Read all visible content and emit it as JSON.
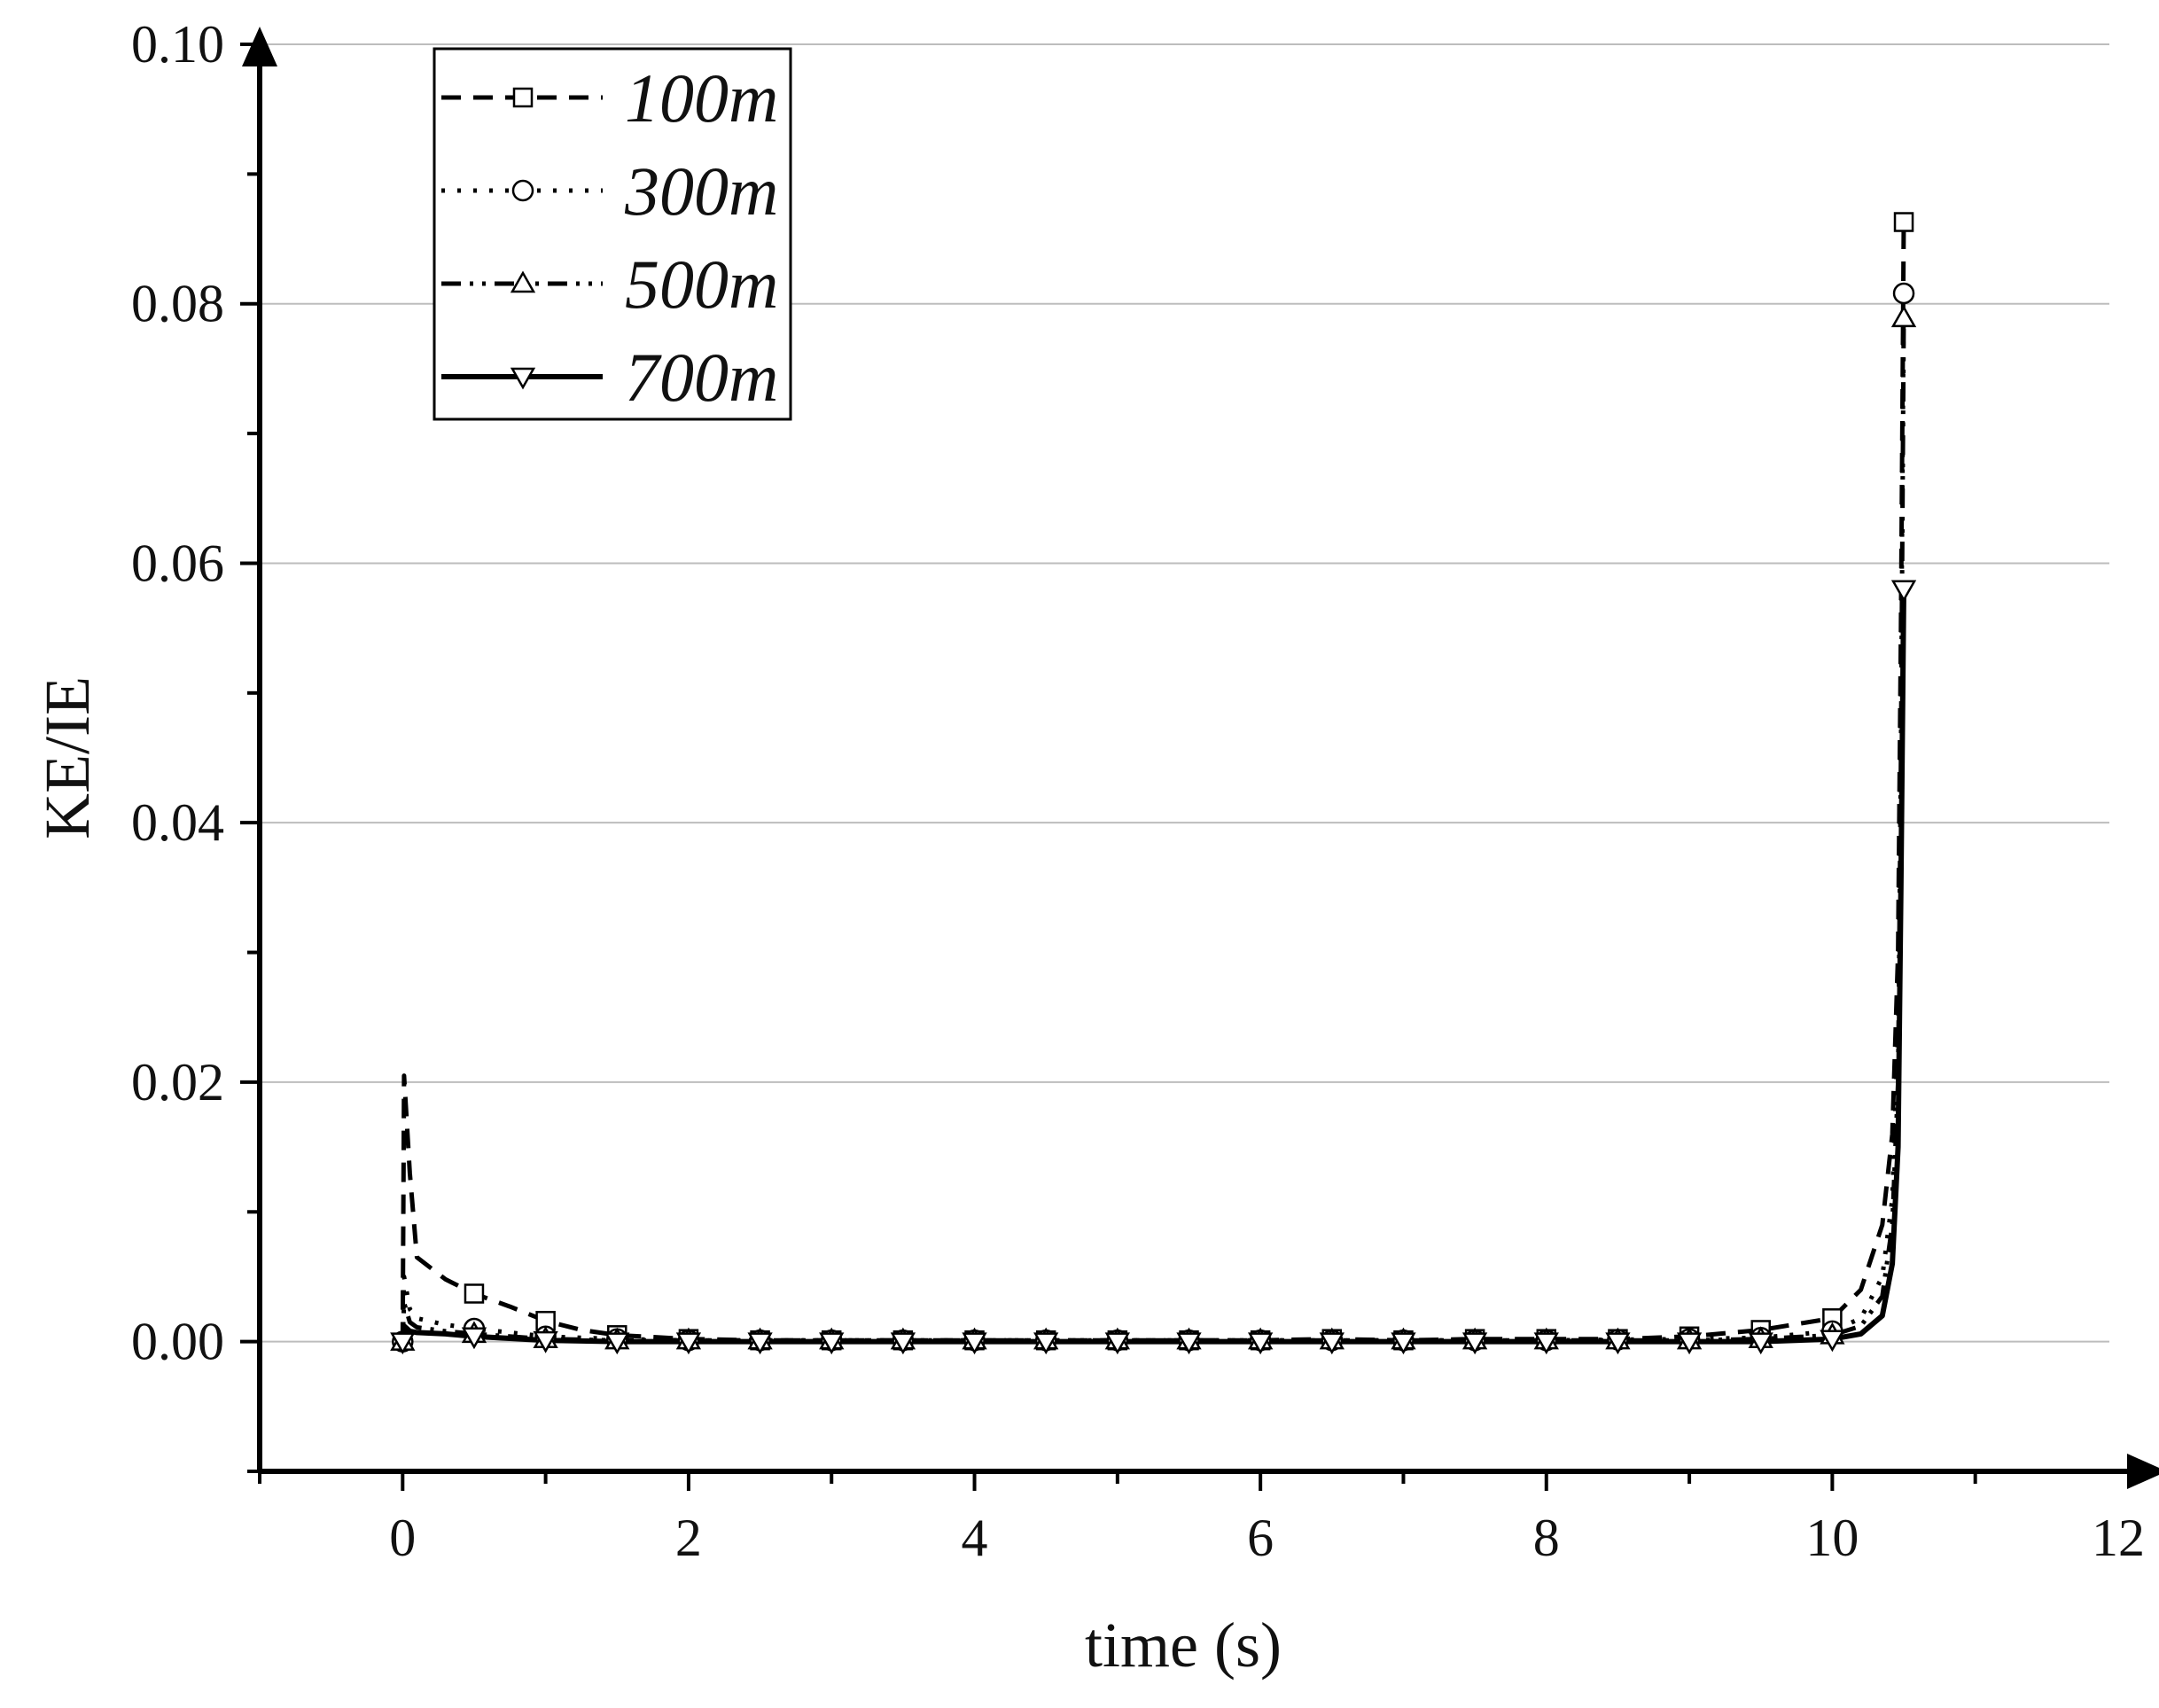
{
  "chart_data": {
    "type": "line",
    "title": "",
    "xlabel": "time (s)",
    "ylabel": "KE/IE",
    "xlim": [
      -1,
      12
    ],
    "ylim": [
      -0.01,
      0.1
    ],
    "x_ticks": [
      0,
      2,
      4,
      6,
      8,
      10,
      12
    ],
    "x_tick_labels": [
      "0",
      "2",
      "4",
      "6",
      "8",
      "10",
      "12"
    ],
    "y_ticks": [
      0.0,
      0.02,
      0.04,
      0.06,
      0.08,
      0.1
    ],
    "y_tick_labels": [
      "0.00",
      "0.02",
      "0.04",
      "0.06",
      "0.08",
      "0.10"
    ],
    "grid": "horizontal",
    "legend_position": "top-left",
    "series": [
      {
        "name": "100m",
        "line_style": "dashed",
        "marker": "square",
        "x": [
          0.0,
          0.01,
          0.05,
          0.1,
          0.3,
          0.5,
          0.75,
          1.0,
          1.25,
          1.5,
          2.0,
          2.5,
          3.0,
          3.5,
          4.0,
          4.5,
          5.0,
          5.5,
          6.0,
          6.5,
          7.0,
          7.5,
          8.0,
          8.5,
          9.0,
          9.5,
          10.0,
          10.2,
          10.35,
          10.42,
          10.46,
          10.48,
          10.5
        ],
        "y": [
          0.0,
          0.0205,
          0.013,
          0.0065,
          0.0048,
          0.0037,
          0.0027,
          0.0016,
          0.0009,
          0.0005,
          0.0002,
          0.0001,
          0.0001,
          0.0001,
          0.0001,
          0.0001,
          0.0001,
          0.0001,
          0.0001,
          0.0002,
          0.0001,
          0.0002,
          0.0002,
          0.0002,
          0.0004,
          0.0009,
          0.0018,
          0.004,
          0.009,
          0.016,
          0.03,
          0.055,
          0.0863
        ],
        "marker_x": [
          0.5,
          1.0,
          1.5,
          2.0,
          2.5,
          3.0,
          3.5,
          4.0,
          4.5,
          5.0,
          5.5,
          6.0,
          6.5,
          7.0,
          7.5,
          8.0,
          8.5,
          9.0,
          9.5,
          10.0,
          10.5
        ]
      },
      {
        "name": "300m",
        "line_style": "dotted",
        "marker": "circle",
        "x": [
          0.0,
          0.01,
          0.05,
          0.1,
          0.3,
          0.5,
          0.75,
          1.0,
          1.5,
          2.0,
          3.0,
          4.0,
          5.0,
          6.0,
          7.0,
          8.0,
          9.0,
          9.5,
          10.0,
          10.2,
          10.35,
          10.42,
          10.46,
          10.48,
          10.5
        ],
        "y": [
          0.0,
          0.005,
          0.0025,
          0.0018,
          0.0013,
          0.001,
          0.0007,
          0.0004,
          0.0002,
          0.0001,
          0.0001,
          0.0001,
          0.0001,
          0.0001,
          0.0001,
          0.0001,
          0.0002,
          0.0003,
          0.0008,
          0.0018,
          0.005,
          0.011,
          0.024,
          0.05,
          0.0808
        ],
        "marker_x": [
          0.0,
          0.5,
          1.0,
          1.5,
          2.0,
          2.5,
          3.0,
          3.5,
          4.0,
          4.5,
          5.0,
          5.5,
          6.0,
          6.5,
          7.0,
          7.5,
          8.0,
          8.5,
          9.0,
          9.5,
          10.0,
          10.5
        ]
      },
      {
        "name": "500m",
        "line_style": "dash-dot-dot",
        "marker": "triangle-up",
        "x": [
          0.0,
          0.01,
          0.05,
          0.1,
          0.3,
          0.5,
          1.0,
          1.5,
          2.0,
          4.0,
          6.0,
          8.0,
          9.0,
          9.5,
          10.0,
          10.2,
          10.35,
          10.42,
          10.46,
          10.48,
          10.5
        ],
        "y": [
          0.0,
          0.003,
          0.0015,
          0.0011,
          0.0008,
          0.0006,
          0.0002,
          0.0001,
          0.0001,
          0.0001,
          0.0001,
          0.0001,
          0.0001,
          0.0002,
          0.0005,
          0.0012,
          0.0035,
          0.009,
          0.02,
          0.045,
          0.0789
        ],
        "marker_x": [
          0.0,
          0.5,
          1.0,
          1.5,
          2.0,
          2.5,
          3.0,
          3.5,
          4.0,
          4.5,
          5.0,
          5.5,
          6.0,
          6.5,
          7.0,
          7.5,
          8.0,
          8.5,
          9.0,
          9.5,
          10.0,
          10.5
        ]
      },
      {
        "name": "700m",
        "line_style": "solid",
        "marker": "triangle-down",
        "x": [
          0.0,
          0.01,
          0.05,
          0.1,
          0.3,
          0.5,
          1.0,
          1.5,
          2.0,
          4.0,
          6.0,
          8.0,
          9.0,
          9.5,
          10.0,
          10.2,
          10.35,
          10.42,
          10.46,
          10.48,
          10.5
        ],
        "y": [
          0.0,
          0.0012,
          0.0008,
          0.0007,
          0.0006,
          0.0004,
          0.0001,
          0.0,
          0.0,
          0.0,
          0.0,
          0.0,
          0.0,
          0.0,
          0.0002,
          0.0006,
          0.002,
          0.006,
          0.015,
          0.035,
          0.058
        ],
        "marker_x": [
          0.0,
          0.5,
          1.0,
          1.5,
          2.0,
          2.5,
          3.0,
          3.5,
          4.0,
          4.5,
          5.0,
          5.5,
          6.0,
          6.5,
          7.0,
          7.5,
          8.0,
          8.5,
          9.0,
          9.5,
          10.0,
          10.5
        ]
      }
    ]
  }
}
